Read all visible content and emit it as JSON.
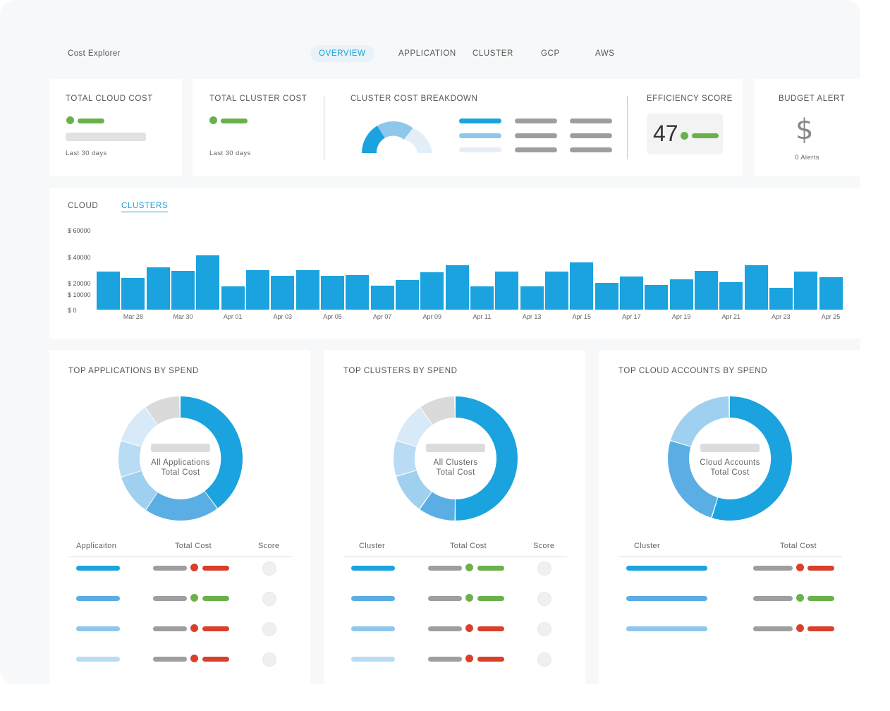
{
  "app": {
    "title": "Cost Explorer"
  },
  "nav": {
    "tabs": [
      {
        "label": "OVERVIEW",
        "active": true
      },
      {
        "label": "APPLICATION"
      },
      {
        "label": "CLUSTER"
      },
      {
        "label": "GCP"
      },
      {
        "label": "AWS"
      }
    ]
  },
  "summary": {
    "total_cloud_cost": {
      "title": "TOTAL CLOUD COST",
      "period": "Last 30 days"
    },
    "total_cluster_cost": {
      "title": "TOTAL CLUSTER COST",
      "period": "Last 30 days"
    },
    "cluster_breakdown": {
      "title": "CLUSTER COST BREAKDOWN"
    },
    "efficiency": {
      "title": "EFFICIENCY SCORE",
      "value": "47"
    },
    "budget": {
      "title": "BUDGET ALERT",
      "icon": "dollar-icon",
      "symbol": "$",
      "alerts": "0 Alerts"
    }
  },
  "chart_tabs": {
    "cloud": "CLOUD",
    "clusters": "CLUSTERS"
  },
  "chart_data": {
    "type": "bar",
    "yticks": [
      "$ 60000",
      "$ 40000",
      "$ 20000",
      "$ 10000",
      "$ 0"
    ],
    "xtick_labels": [
      "Mar 28",
      "Mar 30",
      "Apr 01",
      "Apr 03",
      "Apr 05",
      "Apr 07",
      "Apr 09",
      "Apr 11",
      "Apr 13",
      "Apr 15",
      "Apr 17",
      "Apr 19",
      "Apr 21",
      "Apr 23",
      "Apr 25"
    ],
    "categories": [
      "Mar 27",
      "Mar 28",
      "Mar 29",
      "Mar 30",
      "Mar 31",
      "Apr 01",
      "Apr 02",
      "Apr 03",
      "Apr 04",
      "Apr 05",
      "Apr 06",
      "Apr 07",
      "Apr 08",
      "Apr 09",
      "Apr 10",
      "Apr 11",
      "Apr 12",
      "Apr 13",
      "Apr 14",
      "Apr 15",
      "Apr 16",
      "Apr 17",
      "Apr 18",
      "Apr 19",
      "Apr 20",
      "Apr 21",
      "Apr 22",
      "Apr 23",
      "Apr 24",
      "Apr 25"
    ],
    "values": [
      29000,
      24000,
      32000,
      29500,
      41500,
      17500,
      30000,
      25500,
      30000,
      25500,
      26500,
      18000,
      22500,
      28500,
      33500,
      17500,
      29000,
      17500,
      29000,
      36000,
      20500,
      25000,
      19000,
      23000,
      29500,
      21000,
      34000,
      16500,
      29000,
      24500
    ],
    "ylim": [
      0,
      60000
    ],
    "grid": false,
    "color": "#1aa3de"
  },
  "panels": [
    {
      "title": "TOP APPLICATIONS BY SPEND",
      "center_line1": "All Applications",
      "center_line2": "Total Cost",
      "headers": [
        "Applicaiton",
        "Total Cost",
        "Score"
      ]
    },
    {
      "title": "TOP CLUSTERS BY SPEND",
      "center_line1": "All Clusters",
      "center_line2": "Total Cost",
      "headers": [
        "Cluster",
        "Total Cost",
        "Score"
      ]
    },
    {
      "title": "TOP CLOUD ACCOUNTS BY SPEND",
      "center_line1": "Cloud Accounts",
      "center_line2": "Total Cost",
      "headers": [
        "Cluster",
        "Total Cost"
      ]
    }
  ],
  "colors": {
    "accent": "#1aa3de",
    "green": "#6ab04c",
    "red": "#d9402b",
    "gray": "#9e9e9e"
  }
}
